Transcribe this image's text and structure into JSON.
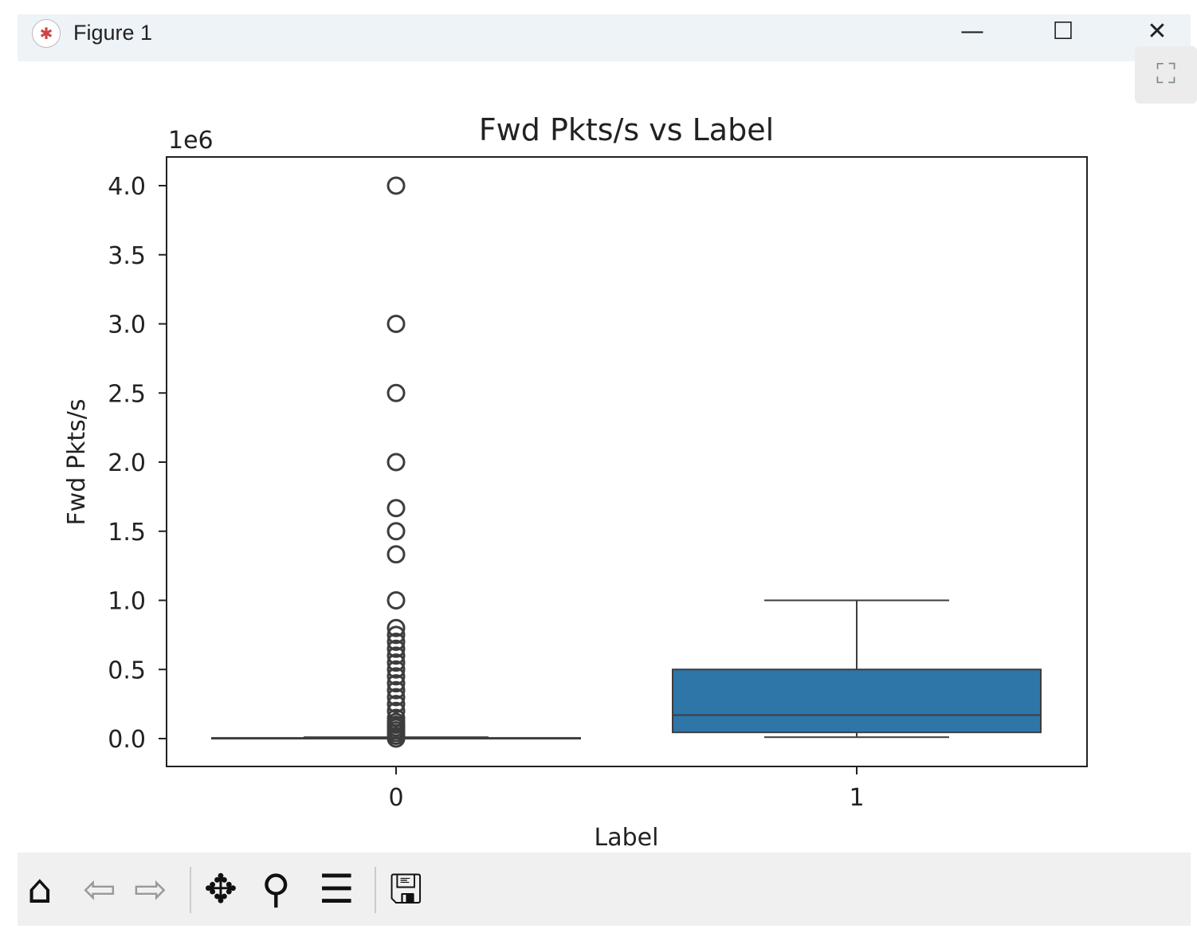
{
  "window": {
    "title": "Figure 1",
    "minimize": "—",
    "maximize": "☐",
    "close": "✕",
    "fullscreen": "⛶"
  },
  "toolbar": {
    "icons": [
      "home-icon",
      "back-icon",
      "forward-icon",
      "pan-icon",
      "zoom-icon",
      "configure-subplots-icon",
      "save-icon"
    ]
  },
  "chart_data": {
    "type": "box",
    "title": "Fwd Pkts/s vs Label",
    "xlabel": "Label",
    "ylabel": "Fwd Pkts/s",
    "offset_label": "1e6",
    "categories": [
      "0",
      "1"
    ],
    "ylim": [
      -0.2,
      4.2
    ],
    "yticks": [
      0.0,
      0.5,
      1.0,
      1.5,
      2.0,
      2.5,
      3.0,
      3.5,
      4.0
    ],
    "ytick_labels": [
      "0.0",
      "0.5",
      "1.0",
      "1.5",
      "2.0",
      "2.5",
      "3.0",
      "3.5",
      "4.0"
    ],
    "boxes": [
      {
        "label": "0",
        "whisker_low": 0.0,
        "q1": 0.0,
        "median": 0.002,
        "q3": 0.005,
        "whisker_high": 0.01,
        "color": "#1f77b4",
        "outliers": [
          4.0,
          3.0,
          2.5,
          2.0,
          1.667,
          1.5,
          1.333,
          1.0,
          0.8,
          0.75,
          0.7,
          0.65,
          0.6,
          0.55,
          0.5,
          0.45,
          0.4,
          0.35,
          0.3,
          0.25,
          0.2,
          0.15,
          0.12,
          0.1,
          0.08,
          0.06,
          0.04,
          0.02,
          0.0
        ]
      },
      {
        "label": "1",
        "whisker_low": 0.01,
        "q1": 0.045,
        "median": 0.17,
        "q3": 0.5,
        "whisker_high": 1.0,
        "color": "#2e75a8",
        "outliers": []
      }
    ]
  }
}
